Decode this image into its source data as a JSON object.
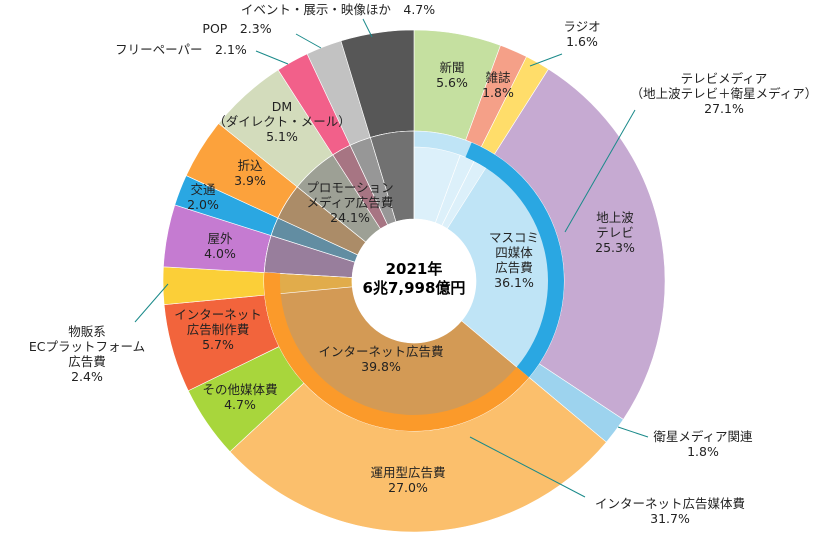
{
  "chart_data": {
    "type": "pie",
    "subtype": "nested-donut",
    "center_label": {
      "line1": "2021年",
      "line2": "6兆7,998億円"
    },
    "inner_ring": [
      {
        "name": "マスコミ四媒体広告費",
        "lines": [
          "マスコミ",
          "四媒体",
          "広告費",
          "36.1%"
        ],
        "value": 36.1,
        "color": "#bfe4f6"
      },
      {
        "name": "インターネット広告費",
        "lines": [
          "インターネット広告費",
          "39.8%"
        ],
        "value": 39.8,
        "color": "#d39a55"
      },
      {
        "name": "プロモーションメディア広告費",
        "lines": [
          "プロモーション",
          "メディア広告費",
          "24.1%"
        ],
        "value": 24.1,
        "color": "#808080"
      }
    ],
    "outer_ring": [
      {
        "name": "新聞",
        "lines": [
          "新聞",
          "5.6%"
        ],
        "value": 5.6,
        "color": "#c5e0a0"
      },
      {
        "name": "雑誌",
        "lines": [
          "雑誌",
          "1.8%"
        ],
        "value": 1.8,
        "color": "#f5a088"
      },
      {
        "name": "ラジオ",
        "lines": [
          "ラジオ",
          "1.6%"
        ],
        "value": 1.6,
        "color": "#ffdd6a"
      },
      {
        "name": "地上波テレビ",
        "lines": [
          "地上波",
          "テレビ",
          "25.3%"
        ],
        "value": 25.3,
        "color": "#c6aad2"
      },
      {
        "name": "衛星メディア関連",
        "lines": [
          "衛星メディア関連",
          "1.8%"
        ],
        "value": 1.8,
        "color": "#9dd3ee"
      },
      {
        "name": "運用型広告費",
        "lines": [
          "運用型広告費",
          "27.0%"
        ],
        "value": 27.0,
        "color": "#fbbf6c"
      },
      {
        "name": "その他媒体費",
        "lines": [
          "その他媒体費",
          "4.7%"
        ],
        "value": 4.7,
        "color": "#a8d63c"
      },
      {
        "name": "インターネット広告制作費",
        "lines": [
          "インターネット",
          "広告制作費",
          "5.7%"
        ],
        "value": 5.7,
        "color": "#f2643c"
      },
      {
        "name": "物販系ECプラットフォーム広告費",
        "lines": [
          "物販系",
          "ECプラットフォーム",
          "広告費",
          "2.4%"
        ],
        "value": 2.4,
        "color": "#fbcf38"
      },
      {
        "name": "屋外",
        "lines": [
          "屋外",
          "4.0%"
        ],
        "value": 4.0,
        "color": "#c57bd1"
      },
      {
        "name": "交通",
        "lines": [
          "交通",
          "2.0%"
        ],
        "value": 2.0,
        "color": "#2aa7e2"
      },
      {
        "name": "折込",
        "lines": [
          "折込",
          "3.9%"
        ],
        "value": 3.9,
        "color": "#fca23c"
      },
      {
        "name": "DM（ダイレクト・メール）",
        "lines": [
          "DM",
          "（ダイレクト・メール）",
          "5.1%"
        ],
        "value": 5.1,
        "color": "#d3dcbc"
      },
      {
        "name": "フリーペーパー",
        "lines": [
          "フリーペーパー　2.1%"
        ],
        "value": 2.1,
        "color": "#f2608a"
      },
      {
        "name": "POP",
        "lines": [
          "POP　2.3%"
        ],
        "value": 2.3,
        "color": "#c2c2c2"
      },
      {
        "name": "イベント・展示・映像ほか",
        "lines": [
          "イベント・展示・映像ほか　4.7%"
        ],
        "value": 4.7,
        "color": "#575757"
      }
    ],
    "group_bands": [
      {
        "name": "テレビメディア",
        "lines": [
          "テレビメディア",
          "（地上波テレビ＋衛星メディア）",
          "27.1%"
        ],
        "value": 27.1
      },
      {
        "name": "インターネット広告媒体費",
        "lines": [
          "インターネット広告媒体費",
          "31.7%"
        ],
        "value": 31.7
      }
    ],
    "colors": {
      "mass4_band": "#2aa7e2",
      "internet_band": "#fb9a2a"
    }
  }
}
